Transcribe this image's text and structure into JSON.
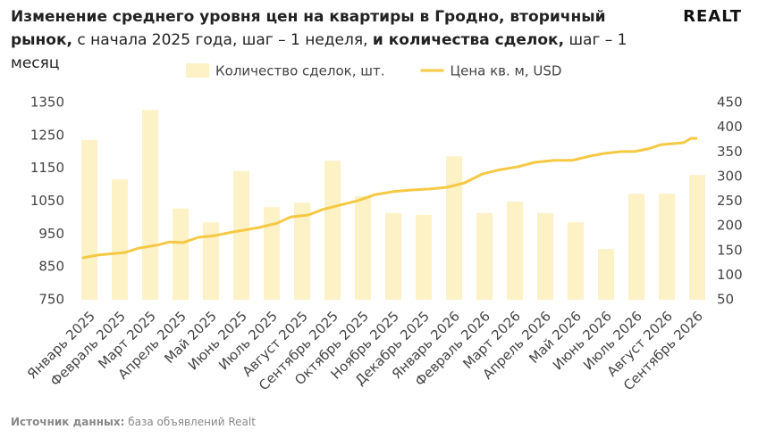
{
  "chart_data": {
    "type": "bar-line",
    "title_parts": [
      "Изменение среднего уровня цен на квартиры в Гродно, вторичный рынок,",
      " с начала 2025 года, шаг – 1 неделя, ",
      "и количества сделок,",
      " шаг – 1 месяц"
    ],
    "logo": "REALT",
    "source_label": "Источник данных:",
    "source_text": " база объявлений Realt",
    "categories": [
      "Январь 2025",
      "Февраль 2025",
      "Март 2025",
      "Апрель 2025",
      "Май 2025",
      "Июнь 2025",
      "Июль 2025",
      "Август 2025",
      "Сентябрь 2025",
      "Октябрь 2025",
      "Ноябрь 2025",
      "Декабрь 2025",
      "Январь 2026",
      "Февраль 2026",
      "Март 2026",
      "Апрель 2026",
      "Май 2026",
      "Июнь 2026",
      "Июль 2026",
      "Август 2026",
      "Сентябрь 2026"
    ],
    "series": [
      {
        "name": "Количество сделок, шт.",
        "type": "bar",
        "axis": "y2",
        "color": "#fdf1c6",
        "values": [
          374,
          294,
          435,
          235,
          207,
          311,
          238,
          247,
          332,
          260,
          226,
          222,
          341,
          226,
          249,
          226,
          207,
          153,
          265,
          265,
          303
        ]
      },
      {
        "name": "Цена кв. м, USD",
        "type": "line",
        "color": "#f6c944",
        "x": [
          -0.24,
          0.29,
          1.18,
          1.62,
          2.21,
          2.65,
          3.09,
          3.59,
          4.12,
          4.71,
          5.59,
          6.18,
          6.62,
          7.21,
          7.65,
          8.24,
          8.82,
          9.41,
          10.0,
          10.59,
          11.18,
          11.76,
          12.35,
          12.94,
          13.53,
          14.12,
          14.65,
          15.29,
          15.88,
          16.47,
          16.91,
          17.5,
          17.94,
          18.38,
          18.82,
          19.56,
          19.79,
          20.0
        ],
        "values": [
          877,
          886,
          894,
          907,
          916,
          926,
          924,
          940,
          945,
          956,
          970,
          983,
          1002,
          1008,
          1024,
          1038,
          1051,
          1070,
          1079,
          1084,
          1087,
          1092,
          1106,
          1133,
          1146,
          1155,
          1168,
          1174,
          1174,
          1187,
          1195,
          1201,
          1201,
          1209,
          1222,
          1228,
          1241,
          1241
        ]
      }
    ],
    "ylim": [
      750,
      1350
    ],
    "yticks": [
      750,
      850,
      950,
      1050,
      1150,
      1250,
      1350
    ],
    "y2lim": [
      50,
      450
    ],
    "y2ticks": [
      50,
      100,
      150,
      200,
      250,
      300,
      350,
      400,
      450
    ],
    "legend": "top"
  }
}
